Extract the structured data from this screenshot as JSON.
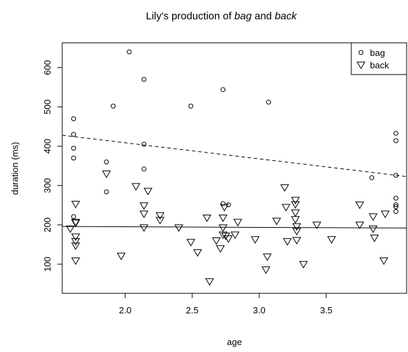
{
  "chart_data": {
    "type": "scatter",
    "title": [
      "Lily's production of ",
      "bag",
      " and ",
      "back"
    ],
    "title_italic": [
      false,
      true,
      false,
      true
    ],
    "xlabel": "age",
    "ylabel": "duration (ms)",
    "xlim": [
      1.53,
      4.1
    ],
    "ylim": [
      26,
      663
    ],
    "xticks": [
      {
        "value": 2,
        "label": "2.0"
      },
      2.5,
      {
        "value": 3,
        "label": "3.0"
      },
      3.5
    ],
    "yticks": [
      100,
      200,
      300,
      400,
      500,
      600
    ],
    "legend": "top-right",
    "series": [
      {
        "name": "bag",
        "marker": "circle",
        "color": "#000000",
        "x": [
          1.615,
          1.615,
          1.615,
          1.615,
          1.615,
          1.86,
          1.86,
          1.91,
          2.03,
          2.14,
          2.14,
          2.14,
          2.49,
          2.73,
          2.73,
          2.77,
          3.07,
          3.84,
          4.02,
          4.02,
          4.02,
          4.02,
          4.02,
          4.02,
          4.02
        ],
        "values": [
          470,
          430,
          395,
          370,
          221,
          360,
          284,
          502,
          640,
          570,
          405,
          342,
          502,
          544,
          254,
          251,
          512,
          320,
          433,
          414,
          326,
          268,
          251,
          246,
          234
        ]
      },
      {
        "name": "back",
        "marker": "triangle",
        "color": "#000000",
        "x": [
          1.59,
          1.63,
          1.63,
          1.63,
          1.63,
          1.63,
          1.63,
          1.63,
          1.86,
          1.97,
          2.08,
          2.14,
          2.14,
          2.17,
          2.14,
          2.26,
          2.26,
          2.4,
          2.49,
          2.54,
          2.61,
          2.63,
          2.68,
          2.71,
          2.73,
          2.73,
          2.73,
          2.74,
          2.75,
          2.77,
          2.82,
          2.84,
          2.97,
          3.06,
          3.05,
          3.13,
          3.19,
          3.2,
          3.21,
          3.27,
          3.27,
          3.27,
          3.28,
          3.28,
          3.28,
          3.27,
          3.33,
          3.43,
          3.54,
          3.75,
          3.75,
          3.85,
          3.85,
          3.86,
          3.94,
          3.93
        ],
        "values": [
          190,
          253,
          207,
          205,
          170,
          158,
          147,
          109,
          330,
          121,
          298,
          249,
          228,
          286,
          193,
          224,
          212,
          193,
          156,
          130,
          218,
          56,
          160,
          140,
          175,
          193,
          218,
          245,
          172,
          165,
          175,
          207,
          163,
          119,
          86,
          210,
          295,
          245,
          158,
          263,
          252,
          214,
          196,
          184,
          161,
          231,
          100,
          200,
          163,
          251,
          200,
          221,
          190,
          167,
          228,
          109
        ]
      }
    ],
    "lines": [
      {
        "style": "dashed",
        "x": [
          1.53,
          4.1
        ],
        "values": [
          428,
          323
        ]
      },
      {
        "style": "solid",
        "x": [
          1.53,
          4.1
        ],
        "values": [
          196,
          192
        ]
      }
    ]
  }
}
